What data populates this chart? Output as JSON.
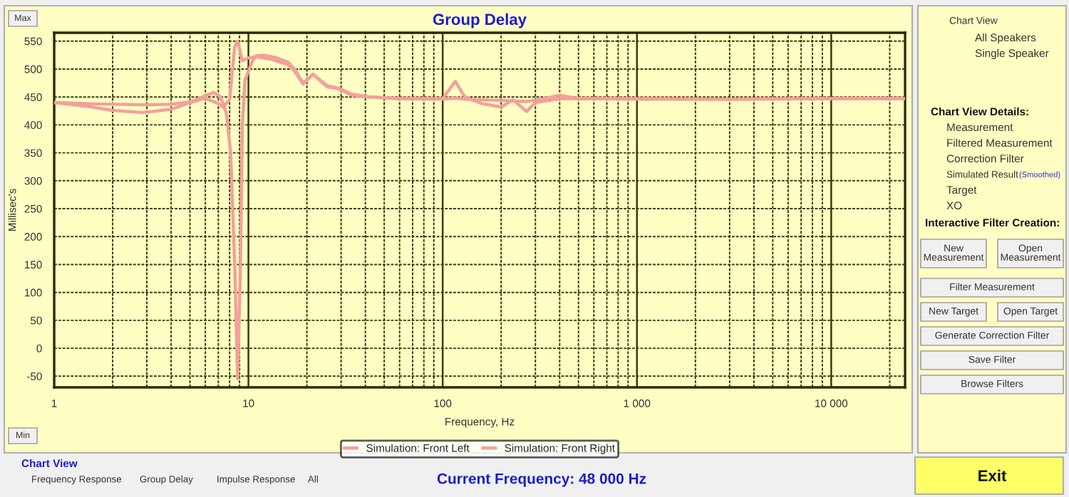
{
  "chart_data": [
    {
      "type": "line",
      "title": "Group Delay",
      "xlabel": "Frequency, Hz",
      "ylabel": "Millisec's",
      "log": "x",
      "grid": true,
      "legend": "bottom",
      "line_style": "solid",
      "xlim": [
        1,
        24000
      ],
      "ylim": [
        -70,
        565
      ],
      "xticks": [
        1,
        {
          "value": 2,
          "label": null
        },
        {
          "value": 3,
          "label": null
        },
        {
          "value": 4,
          "label": null
        },
        {
          "value": 5,
          "label": null
        },
        {
          "value": 6,
          "label": null
        },
        {
          "value": 7,
          "label": null
        },
        {
          "value": 8,
          "label": null
        },
        {
          "value": 9,
          "label": null
        },
        10,
        {
          "value": 20,
          "label": null
        },
        {
          "value": 30,
          "label": null
        },
        {
          "value": 40,
          "label": null
        },
        {
          "value": 50,
          "label": null
        },
        {
          "value": 60,
          "label": null
        },
        {
          "value": 70,
          "label": null
        },
        {
          "value": 80,
          "label": null
        },
        {
          "value": 90,
          "label": null
        },
        100,
        {
          "value": 200,
          "label": null
        },
        {
          "value": 300,
          "label": null
        },
        {
          "value": 400,
          "label": null
        },
        {
          "value": 500,
          "label": null
        },
        {
          "value": 600,
          "label": null
        },
        {
          "value": 700,
          "label": null
        },
        {
          "value": 800,
          "label": null
        },
        {
          "value": 900,
          "label": null
        },
        {
          "value": 1000,
          "label": "1 000"
        },
        {
          "value": 2000,
          "label": null
        },
        {
          "value": 3000,
          "label": null
        },
        {
          "value": 4000,
          "label": null
        },
        {
          "value": 5000,
          "label": null
        },
        {
          "value": 6000,
          "label": null
        },
        {
          "value": 7000,
          "label": null
        },
        {
          "value": 8000,
          "label": null
        },
        {
          "value": 9000,
          "label": null
        },
        {
          "value": 10000,
          "label": "10 000"
        },
        {
          "value": 20000,
          "label": null
        }
      ],
      "yticks": [
        -50,
        0,
        50,
        100,
        150,
        200,
        250,
        300,
        350,
        400,
        450,
        500,
        550
      ],
      "series": [
        {
          "name": "Simulation: Front Left",
          "color": "#f4a09a",
          "x": [
            1,
            1.5,
            2,
            3,
            4,
            5,
            6,
            6.6,
            7.2,
            7.7,
            8.1,
            8.5,
            8.8,
            9.1,
            9.3,
            9.6,
            10.5,
            11,
            12,
            14,
            16,
            17.3,
            19.1,
            21.5,
            25.5,
            29,
            34,
            42,
            60,
            100,
            116,
            130,
            160,
            200,
            230,
            270,
            300,
            400,
            500,
            1000,
            3000,
            10000,
            24000
          ],
          "values": [
            440,
            438,
            437,
            436,
            437,
            441,
            452,
            458,
            450,
            420,
            350,
            150,
            -55,
            150,
            400,
            480,
            515,
            524,
            525,
            520,
            512,
            500,
            475,
            490,
            470,
            466,
            455,
            450,
            447,
            446,
            448,
            446,
            445,
            444,
            443,
            442,
            444,
            453,
            447,
            447,
            446,
            447,
            447
          ]
        },
        {
          "name": "Simulation: Front Right",
          "color": "#f4a09a",
          "x": [
            1,
            1.5,
            2,
            2.85,
            4,
            5,
            6,
            7,
            7.4,
            8,
            8.5,
            8.8,
            9.3,
            10,
            11,
            13,
            16,
            17.3,
            19.1,
            21.5,
            25.5,
            29,
            34,
            42,
            60,
            100,
            116,
            130,
            160,
            200,
            230,
            270,
            300,
            400,
            500,
            1000,
            3000,
            10000,
            24000
          ],
          "values": [
            440,
            433,
            426,
            422,
            428,
            440,
            448,
            438,
            432,
            445,
            540,
            550,
            515,
            520,
            522,
            518,
            508,
            496,
            473,
            491,
            468,
            465,
            453,
            450,
            447,
            447,
            478,
            450,
            438,
            432,
            445,
            424,
            440,
            447,
            447,
            446,
            446,
            447,
            447
          ]
        }
      ]
    },
    {
      "type": "other",
      "annotations": [
        "Chart View",
        "All Speakers",
        "Single Speaker",
        "Chart View Details:",
        "Measurement",
        "Filtered Measurement",
        "Correction Filter",
        "Simulated Result",
        "(Smoothed)",
        "Target",
        "XO",
        "Interactive Filter Creation:",
        "New\nMeasurement",
        "Open\nMeasurement",
        "Filter Measurement",
        "New Target",
        "Open Target",
        "Generate Correction Filter",
        "Save Filter",
        "Browse Filters",
        "Max",
        "Min",
        "Chart View",
        "Frequency Response",
        "Group Delay",
        "Impulse Response",
        "All",
        "Current Frequency: 48 000 Hz",
        "Exit"
      ]
    }
  ]
}
